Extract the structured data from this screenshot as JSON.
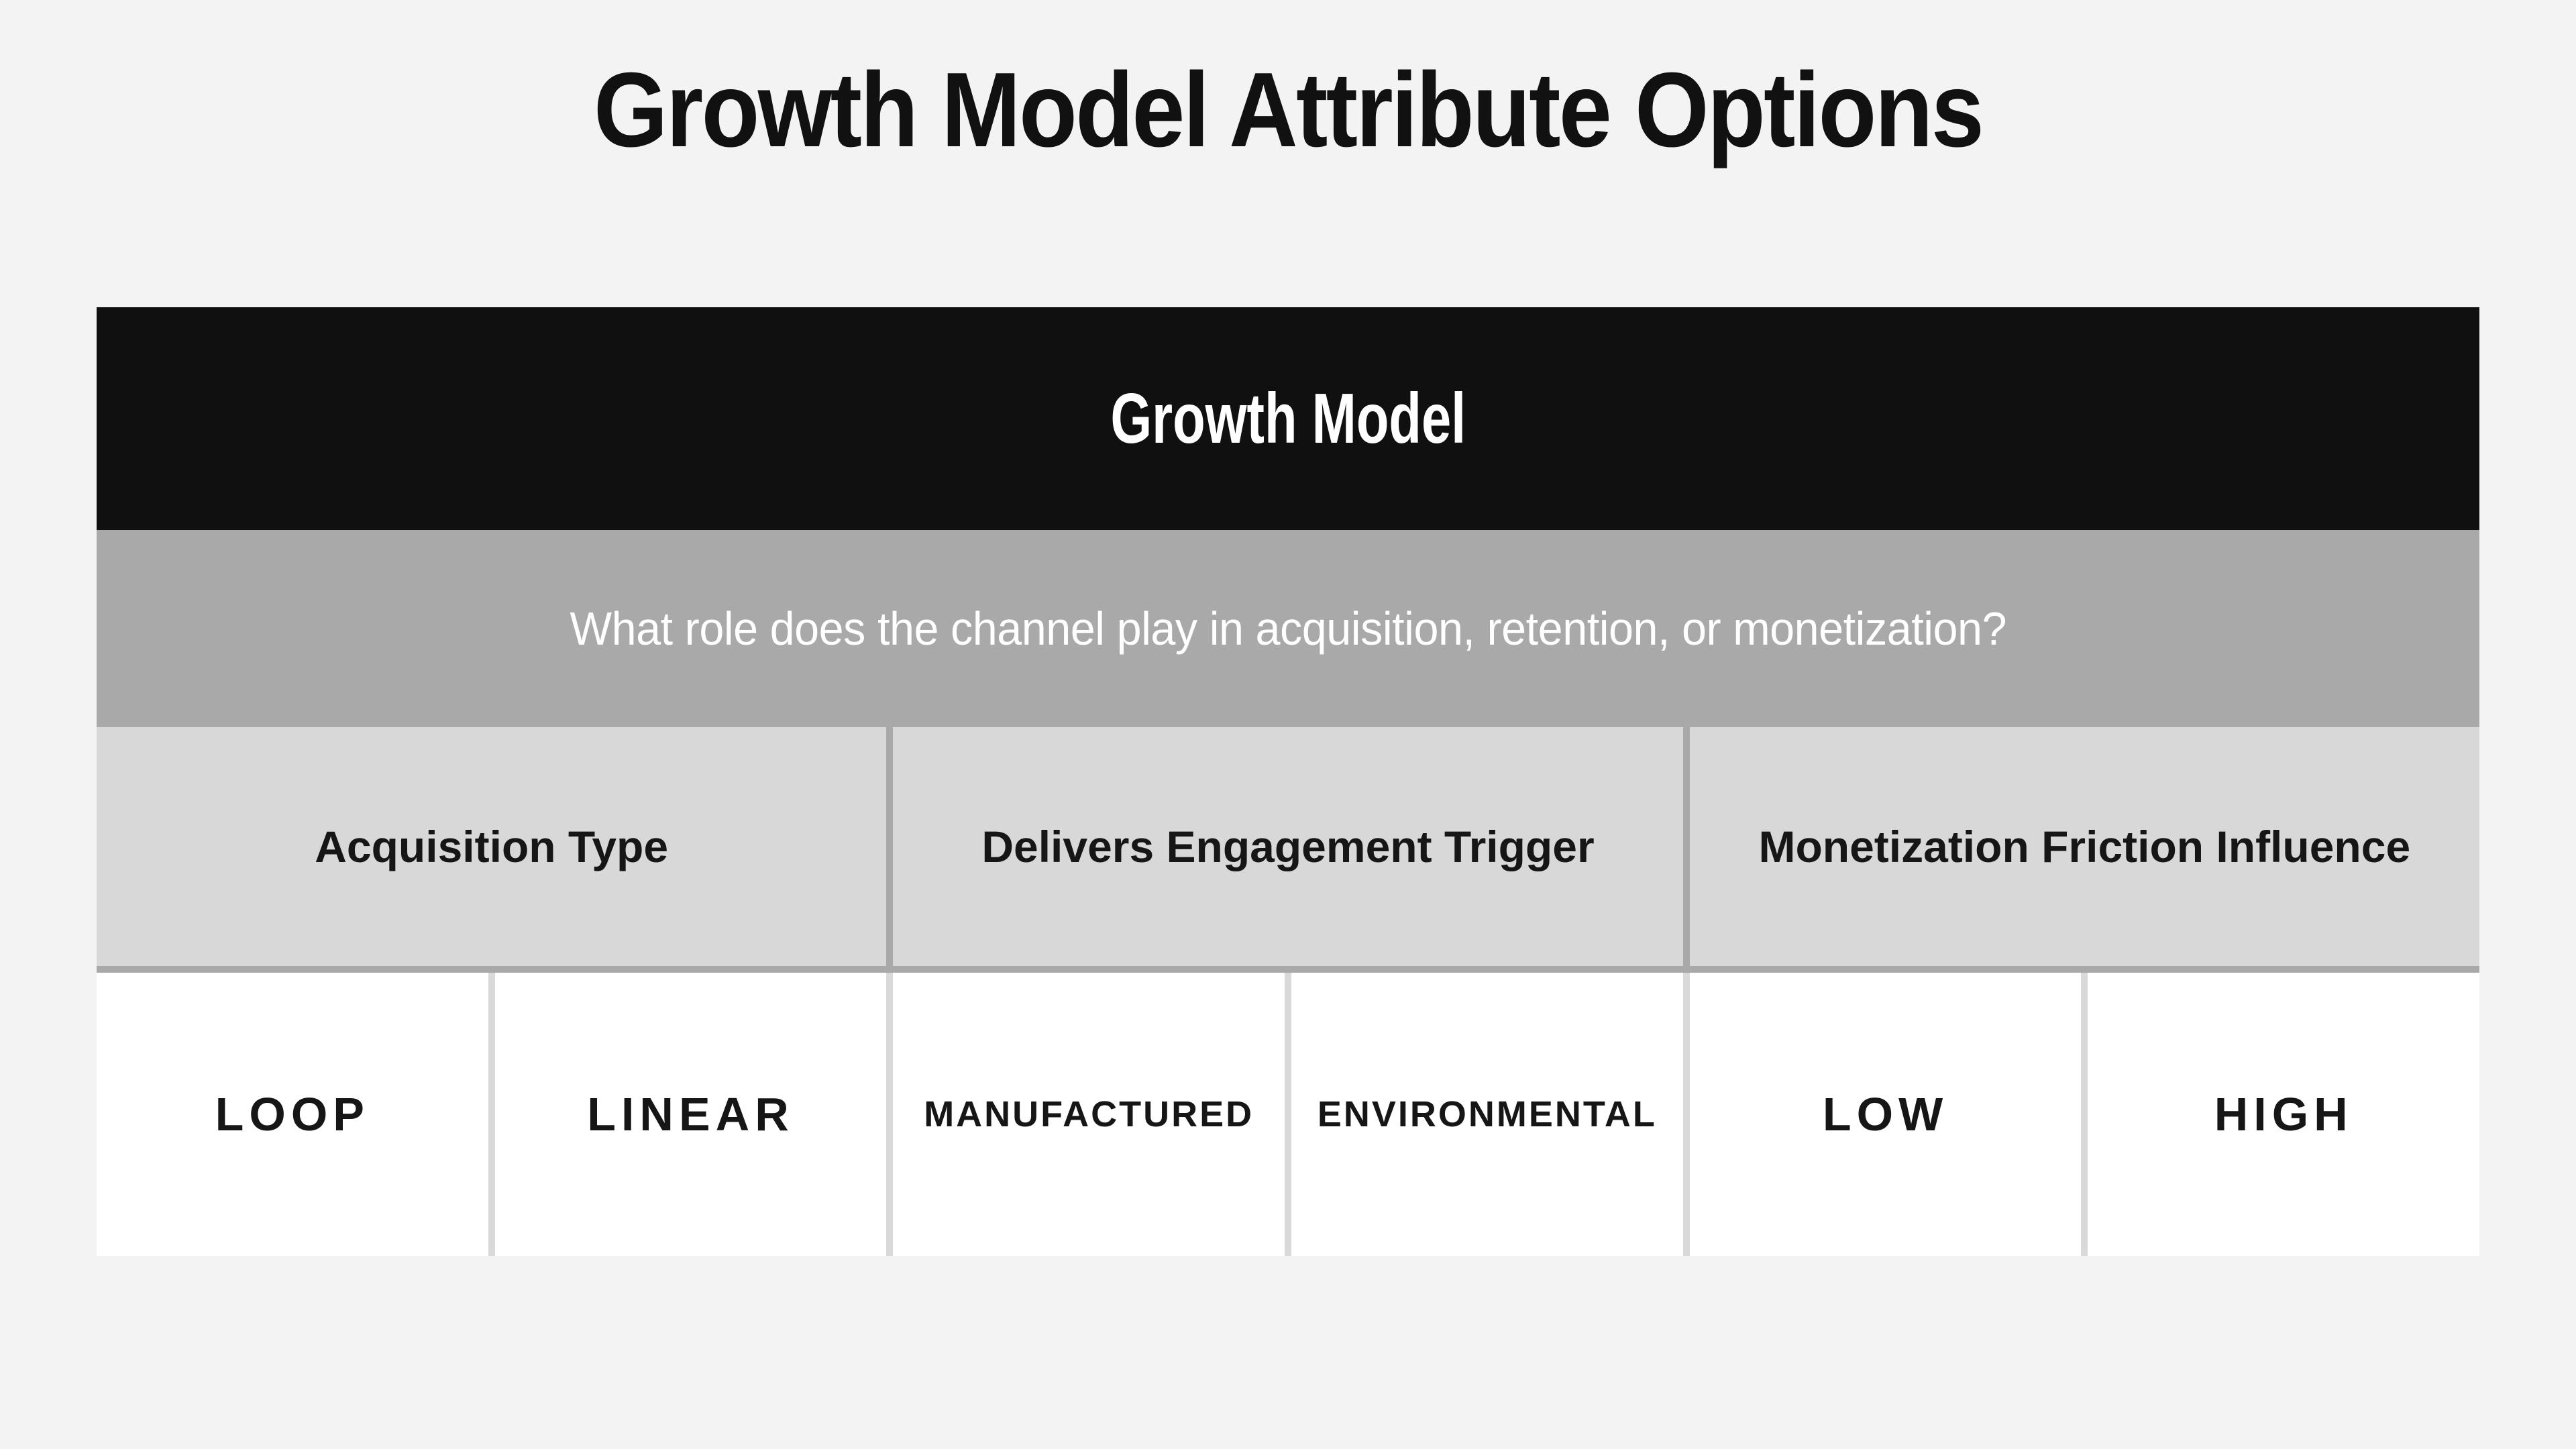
{
  "page_title": "Growth Model Attribute Options",
  "table": {
    "title": "Growth Model",
    "question": "What role does the channel play in acquisition, retention, or monetization?",
    "attributes": [
      {
        "label": "Acquisition Type",
        "options": [
          "LOOP",
          "LINEAR"
        ]
      },
      {
        "label": "Delivers Engagement Trigger",
        "options": [
          "MANUFACTURED",
          "ENVIRONMENTAL"
        ]
      },
      {
        "label": "Monetization Friction Influence",
        "options": [
          "LOW",
          "HIGH"
        ]
      }
    ]
  },
  "colors": {
    "page-bg": "#f3f3f3",
    "title-text": "#111111",
    "bar-bg": "#101010",
    "bar-text": "#ffffff",
    "question-bg": "#a9a9a9",
    "question-text": "#ffffff",
    "attr-bg": "#d8d8d8",
    "attr-text": "#161616",
    "option-bg": "#ffffff",
    "option-text": "#161616",
    "option-gap": "#d9d9d9"
  }
}
